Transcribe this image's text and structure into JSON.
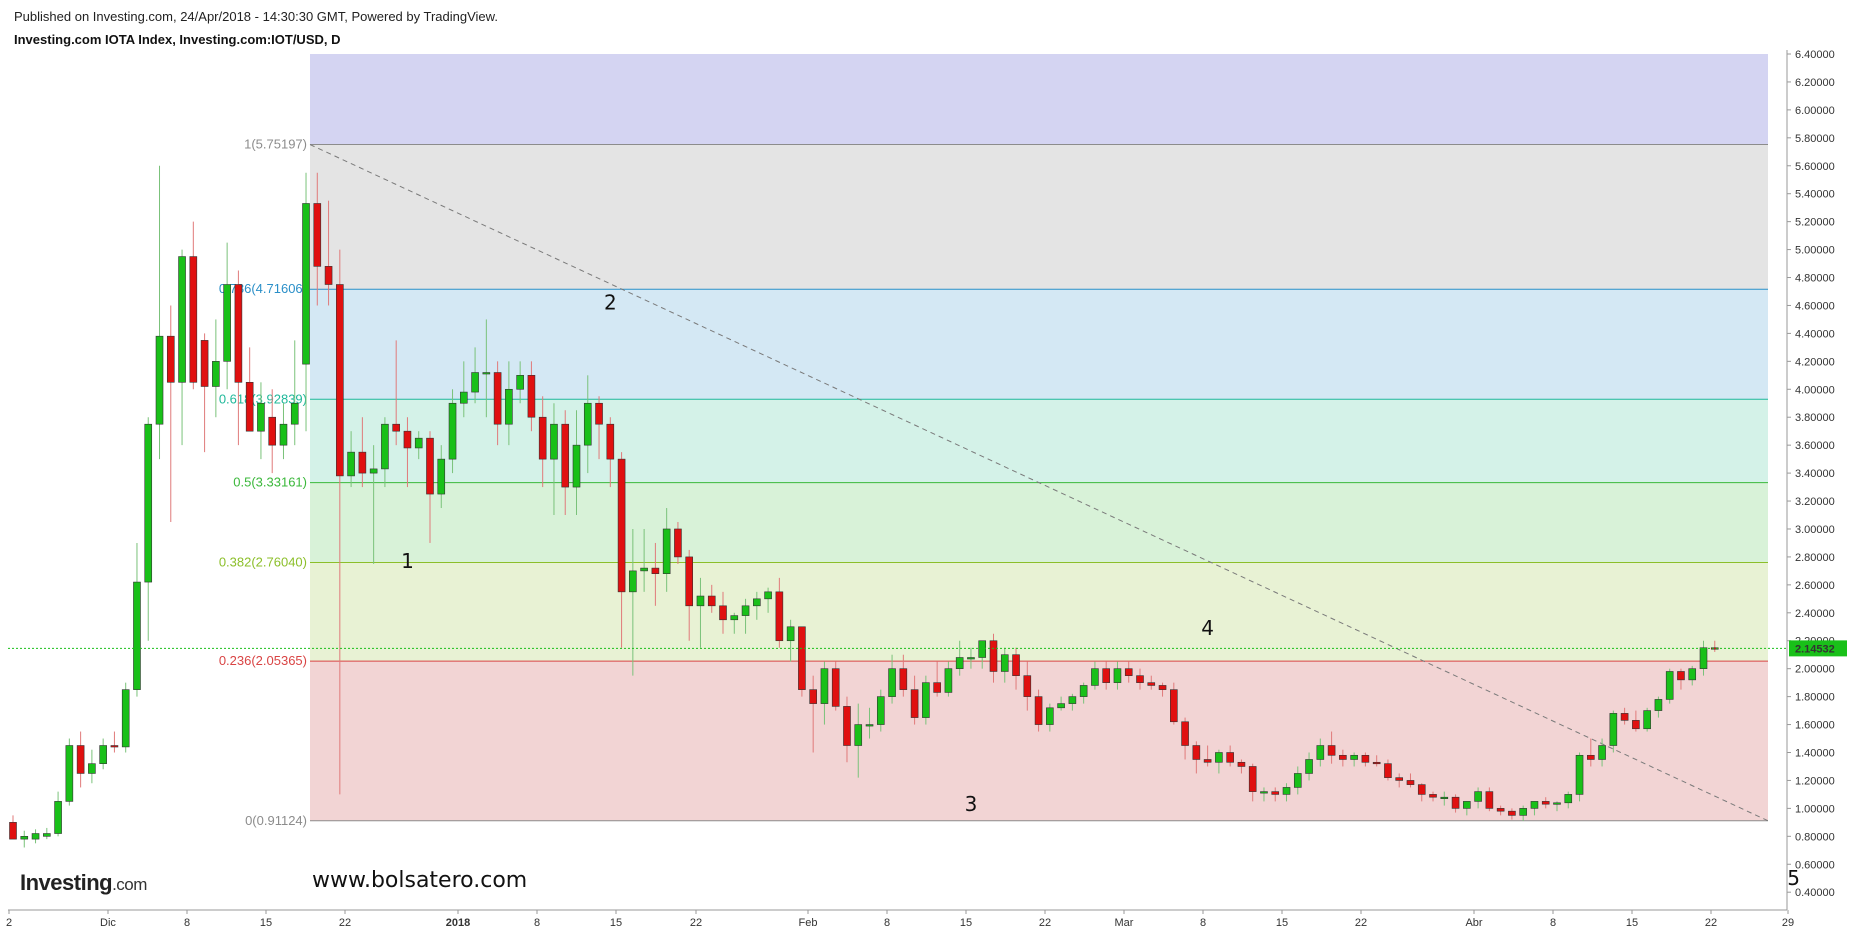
{
  "header": {
    "published": "Published on Investing.com, 24/Apr/2018 - 14:30:30 GMT, Powered by TradingView.",
    "symbol": "Investing.com IOTA Index, Investing.com:IOT/USD, D"
  },
  "branding": {
    "logo_main": "Investing",
    "logo_suffix": ".com",
    "watermark": "www.bolsatero.com"
  },
  "chart_data": {
    "type": "candlestick",
    "symbol": "IOT/USD",
    "timeframe": "D",
    "ylim": [
      0.3,
      6.5
    ],
    "yticks": [
      "6.40000",
      "6.20000",
      "6.00000",
      "5.80000",
      "5.60000",
      "5.40000",
      "5.20000",
      "5.00000",
      "4.80000",
      "4.60000",
      "4.40000",
      "4.20000",
      "4.00000",
      "3.80000",
      "3.60000",
      "3.40000",
      "3.20000",
      "3.00000",
      "2.80000",
      "2.60000",
      "2.40000",
      "2.20000",
      "2.00000",
      "1.80000",
      "1.60000",
      "1.40000",
      "1.20000",
      "1.00000",
      "0.80000",
      "0.60000",
      "0.40000"
    ],
    "xticks": [
      "2",
      "Dic",
      "8",
      "15",
      "22",
      "2018",
      "8",
      "15",
      "22",
      "Feb",
      "8",
      "15",
      "22",
      "Mar",
      "8",
      "15",
      "22",
      "Abr",
      "8",
      "15",
      "22",
      "29"
    ],
    "last_price": "2.14532",
    "colors": {
      "up": "#19c019",
      "down": "#e01010",
      "fib_line_dashed": "#7a7a7a"
    },
    "fibonacci": [
      {
        "label": "1(5.75197)",
        "level": 5.75197,
        "color": "#8c8c8c"
      },
      {
        "label": "0.786(4.71606)",
        "level": 4.71606,
        "color": "#2a8fc8"
      },
      {
        "label": "0.618(3.92839)",
        "level": 3.92839,
        "color": "#1fb89a"
      },
      {
        "label": "0.5(3.33161)",
        "level": 3.33161,
        "color": "#3bb83b"
      },
      {
        "label": "0.382(2.76040)",
        "level": 2.7604,
        "color": "#8cbf2a"
      },
      {
        "label": "0.236(2.05365)",
        "level": 2.05365,
        "color": "#d94444"
      },
      {
        "label": "0(0.91124)",
        "level": 0.91124,
        "color": "#8c8c8c"
      }
    ],
    "fib_zones": [
      {
        "from": 5.75197,
        "to": 6.4,
        "color": "#d4d4f2"
      },
      {
        "from": 4.71606,
        "to": 5.75197,
        "color": "#e4e4e4"
      },
      {
        "from": 3.92839,
        "to": 4.71606,
        "color": "#d4e8f4"
      },
      {
        "from": 3.33161,
        "to": 3.92839,
        "color": "#d4f2e8"
      },
      {
        "from": 2.7604,
        "to": 3.33161,
        "color": "#d8f2d8"
      },
      {
        "from": 2.05365,
        "to": 2.7604,
        "color": "#e8f2d4"
      },
      {
        "from": 0.91124,
        "to": 2.05365,
        "color": "#f2d4d4"
      }
    ],
    "wave_labels": [
      {
        "text": "1",
        "index": 35,
        "price": 2.72
      },
      {
        "text": "2",
        "index": 53,
        "price": 4.57
      },
      {
        "text": "3",
        "index": 85,
        "price": 0.98
      },
      {
        "text": "4",
        "index": 106,
        "price": 2.24
      },
      {
        "text": "5",
        "index": 158,
        "price": 0.45
      }
    ],
    "candles": [
      {
        "o": 0.9,
        "h": 0.95,
        "l": 0.82,
        "c": 0.78
      },
      {
        "o": 0.78,
        "h": 0.84,
        "l": 0.72,
        "c": 0.8
      },
      {
        "o": 0.78,
        "h": 0.85,
        "l": 0.75,
        "c": 0.82
      },
      {
        "o": 0.8,
        "h": 0.86,
        "l": 0.78,
        "c": 0.82
      },
      {
        "o": 0.82,
        "h": 1.12,
        "l": 0.8,
        "c": 1.05
      },
      {
        "o": 1.05,
        "h": 1.5,
        "l": 1.02,
        "c": 1.45
      },
      {
        "o": 1.45,
        "h": 1.55,
        "l": 1.15,
        "c": 1.25
      },
      {
        "o": 1.25,
        "h": 1.42,
        "l": 1.18,
        "c": 1.32
      },
      {
        "o": 1.32,
        "h": 1.5,
        "l": 1.28,
        "c": 1.45
      },
      {
        "o": 1.45,
        "h": 1.55,
        "l": 1.4,
        "c": 1.44
      },
      {
        "o": 1.44,
        "h": 1.9,
        "l": 1.4,
        "c": 1.85
      },
      {
        "o": 1.85,
        "h": 2.9,
        "l": 1.8,
        "c": 2.62
      },
      {
        "o": 2.62,
        "h": 3.8,
        "l": 2.2,
        "c": 3.75
      },
      {
        "o": 3.75,
        "h": 5.6,
        "l": 3.5,
        "c": 4.38
      },
      {
        "o": 4.38,
        "h": 4.6,
        "l": 3.05,
        "c": 4.05
      },
      {
        "o": 4.05,
        "h": 5.0,
        "l": 3.6,
        "c": 4.95
      },
      {
        "o": 4.95,
        "h": 5.2,
        "l": 4.0,
        "c": 4.05
      },
      {
        "o": 4.35,
        "h": 4.4,
        "l": 3.55,
        "c": 4.02
      },
      {
        "o": 4.02,
        "h": 4.5,
        "l": 3.8,
        "c": 4.2
      },
      {
        "o": 4.2,
        "h": 5.05,
        "l": 4.0,
        "c": 4.75
      },
      {
        "o": 4.75,
        "h": 4.85,
        "l": 3.6,
        "c": 4.05
      },
      {
        "o": 4.05,
        "h": 4.3,
        "l": 3.7,
        "c": 3.7
      },
      {
        "o": 3.7,
        "h": 4.05,
        "l": 3.5,
        "c": 3.9
      },
      {
        "o": 3.8,
        "h": 4.0,
        "l": 3.4,
        "c": 3.6
      },
      {
        "o": 3.6,
        "h": 3.9,
        "l": 3.5,
        "c": 3.75
      },
      {
        "o": 3.75,
        "h": 4.35,
        "l": 3.6,
        "c": 3.9
      },
      {
        "o": 4.18,
        "h": 5.55,
        "l": 3.7,
        "c": 5.33
      },
      {
        "o": 5.33,
        "h": 5.55,
        "l": 4.6,
        "c": 4.88
      },
      {
        "o": 4.88,
        "h": 5.35,
        "l": 4.6,
        "c": 4.75
      },
      {
        "o": 4.75,
        "h": 5.0,
        "l": 1.1,
        "c": 3.38
      },
      {
        "o": 3.38,
        "h": 3.7,
        "l": 3.3,
        "c": 3.55
      },
      {
        "o": 3.55,
        "h": 3.8,
        "l": 3.3,
        "c": 3.4
      },
      {
        "o": 3.4,
        "h": 3.6,
        "l": 2.75,
        "c": 3.43
      },
      {
        "o": 3.43,
        "h": 3.8,
        "l": 3.3,
        "c": 3.75
      },
      {
        "o": 3.75,
        "h": 4.35,
        "l": 3.6,
        "c": 3.7
      },
      {
        "o": 3.7,
        "h": 3.8,
        "l": 3.3,
        "c": 3.58
      },
      {
        "o": 3.58,
        "h": 3.7,
        "l": 3.5,
        "c": 3.65
      },
      {
        "o": 3.65,
        "h": 3.7,
        "l": 2.9,
        "c": 3.25
      },
      {
        "o": 3.25,
        "h": 3.6,
        "l": 3.15,
        "c": 3.5
      },
      {
        "o": 3.5,
        "h": 4.0,
        "l": 3.4,
        "c": 3.9
      },
      {
        "o": 3.9,
        "h": 4.2,
        "l": 3.8,
        "c": 3.98
      },
      {
        "o": 3.98,
        "h": 4.3,
        "l": 3.9,
        "c": 4.12
      },
      {
        "o": 4.12,
        "h": 4.5,
        "l": 3.8,
        "c": 4.12
      },
      {
        "o": 4.12,
        "h": 4.2,
        "l": 3.6,
        "c": 3.75
      },
      {
        "o": 3.75,
        "h": 4.2,
        "l": 3.6,
        "c": 4.0
      },
      {
        "o": 4.0,
        "h": 4.2,
        "l": 3.9,
        "c": 4.1
      },
      {
        "o": 4.1,
        "h": 4.2,
        "l": 3.7,
        "c": 3.8
      },
      {
        "o": 3.8,
        "h": 3.95,
        "l": 3.3,
        "c": 3.5
      },
      {
        "o": 3.5,
        "h": 3.9,
        "l": 3.1,
        "c": 3.75
      },
      {
        "o": 3.75,
        "h": 3.85,
        "l": 3.1,
        "c": 3.3
      },
      {
        "o": 3.3,
        "h": 3.85,
        "l": 3.1,
        "c": 3.6
      },
      {
        "o": 3.6,
        "h": 4.1,
        "l": 3.4,
        "c": 3.9
      },
      {
        "o": 3.9,
        "h": 3.95,
        "l": 3.5,
        "c": 3.75
      },
      {
        "o": 3.75,
        "h": 3.8,
        "l": 3.3,
        "c": 3.5
      },
      {
        "o": 3.5,
        "h": 3.55,
        "l": 2.15,
        "c": 2.55
      },
      {
        "o": 2.55,
        "h": 3.0,
        "l": 1.95,
        "c": 2.7
      },
      {
        "o": 2.7,
        "h": 3.0,
        "l": 2.55,
        "c": 2.72
      },
      {
        "o": 2.72,
        "h": 2.9,
        "l": 2.45,
        "c": 2.68
      },
      {
        "o": 2.68,
        "h": 3.15,
        "l": 2.55,
        "c": 3.0
      },
      {
        "o": 3.0,
        "h": 3.05,
        "l": 2.75,
        "c": 2.8
      },
      {
        "o": 2.8,
        "h": 2.85,
        "l": 2.2,
        "c": 2.45
      },
      {
        "o": 2.45,
        "h": 2.65,
        "l": 2.15,
        "c": 2.52
      },
      {
        "o": 2.52,
        "h": 2.6,
        "l": 2.4,
        "c": 2.45
      },
      {
        "o": 2.45,
        "h": 2.55,
        "l": 2.25,
        "c": 2.35
      },
      {
        "o": 2.35,
        "h": 2.4,
        "l": 2.25,
        "c": 2.38
      },
      {
        "o": 2.38,
        "h": 2.5,
        "l": 2.25,
        "c": 2.45
      },
      {
        "o": 2.45,
        "h": 2.55,
        "l": 2.35,
        "c": 2.5
      },
      {
        "o": 2.5,
        "h": 2.58,
        "l": 2.4,
        "c": 2.55
      },
      {
        "o": 2.55,
        "h": 2.65,
        "l": 2.15,
        "c": 2.2
      },
      {
        "o": 2.2,
        "h": 2.35,
        "l": 2.05,
        "c": 2.3
      },
      {
        "o": 2.3,
        "h": 2.3,
        "l": 1.8,
        "c": 1.85
      },
      {
        "o": 1.85,
        "h": 1.95,
        "l": 1.4,
        "c": 1.75
      },
      {
        "o": 1.75,
        "h": 2.05,
        "l": 1.6,
        "c": 2.0
      },
      {
        "o": 2.0,
        "h": 2.05,
        "l": 1.7,
        "c": 1.73
      },
      {
        "o": 1.73,
        "h": 1.8,
        "l": 1.33,
        "c": 1.45
      },
      {
        "o": 1.45,
        "h": 1.75,
        "l": 1.22,
        "c": 1.6
      },
      {
        "o": 1.6,
        "h": 1.72,
        "l": 1.5,
        "c": 1.6
      },
      {
        "o": 1.6,
        "h": 1.85,
        "l": 1.55,
        "c": 1.8
      },
      {
        "o": 1.8,
        "h": 2.1,
        "l": 1.75,
        "c": 2.0
      },
      {
        "o": 2.0,
        "h": 2.1,
        "l": 1.8,
        "c": 1.85
      },
      {
        "o": 1.85,
        "h": 1.95,
        "l": 1.6,
        "c": 1.65
      },
      {
        "o": 1.65,
        "h": 1.95,
        "l": 1.6,
        "c": 1.9
      },
      {
        "o": 1.9,
        "h": 2.05,
        "l": 1.8,
        "c": 1.83
      },
      {
        "o": 1.83,
        "h": 2.05,
        "l": 1.8,
        "c": 2.0
      },
      {
        "o": 2.0,
        "h": 2.2,
        "l": 1.95,
        "c": 2.08
      },
      {
        "o": 2.08,
        "h": 2.15,
        "l": 2.0,
        "c": 2.08
      },
      {
        "o": 2.08,
        "h": 2.2,
        "l": 2.0,
        "c": 2.2
      },
      {
        "o": 2.2,
        "h": 2.25,
        "l": 1.9,
        "c": 1.98
      },
      {
        "o": 1.98,
        "h": 2.15,
        "l": 1.9,
        "c": 2.1
      },
      {
        "o": 2.1,
        "h": 2.15,
        "l": 1.85,
        "c": 1.95
      },
      {
        "o": 1.95,
        "h": 2.05,
        "l": 1.7,
        "c": 1.8
      },
      {
        "o": 1.8,
        "h": 1.85,
        "l": 1.55,
        "c": 1.6
      },
      {
        "o": 1.6,
        "h": 1.75,
        "l": 1.55,
        "c": 1.72
      },
      {
        "o": 1.72,
        "h": 1.8,
        "l": 1.7,
        "c": 1.75
      },
      {
        "o": 1.75,
        "h": 1.82,
        "l": 1.7,
        "c": 1.8
      },
      {
        "o": 1.8,
        "h": 1.9,
        "l": 1.75,
        "c": 1.88
      },
      {
        "o": 1.88,
        "h": 2.05,
        "l": 1.85,
        "c": 2.0
      },
      {
        "o": 2.0,
        "h": 2.05,
        "l": 1.85,
        "c": 1.9
      },
      {
        "o": 1.9,
        "h": 2.05,
        "l": 1.85,
        "c": 2.0
      },
      {
        "o": 2.0,
        "h": 2.05,
        "l": 1.9,
        "c": 1.95
      },
      {
        "o": 1.95,
        "h": 2.0,
        "l": 1.85,
        "c": 1.9
      },
      {
        "o": 1.9,
        "h": 1.95,
        "l": 1.85,
        "c": 1.88
      },
      {
        "o": 1.88,
        "h": 1.9,
        "l": 1.8,
        "c": 1.85
      },
      {
        "o": 1.85,
        "h": 1.9,
        "l": 1.6,
        "c": 1.62
      },
      {
        "o": 1.62,
        "h": 1.65,
        "l": 1.35,
        "c": 1.45
      },
      {
        "o": 1.45,
        "h": 1.48,
        "l": 1.25,
        "c": 1.35
      },
      {
        "o": 1.35,
        "h": 1.45,
        "l": 1.3,
        "c": 1.33
      },
      {
        "o": 1.33,
        "h": 1.42,
        "l": 1.25,
        "c": 1.4
      },
      {
        "o": 1.4,
        "h": 1.45,
        "l": 1.3,
        "c": 1.33
      },
      {
        "o": 1.33,
        "h": 1.35,
        "l": 1.25,
        "c": 1.3
      },
      {
        "o": 1.3,
        "h": 1.32,
        "l": 1.05,
        "c": 1.12
      },
      {
        "o": 1.12,
        "h": 1.15,
        "l": 1.05,
        "c": 1.12
      },
      {
        "o": 1.12,
        "h": 1.15,
        "l": 1.05,
        "c": 1.1
      },
      {
        "o": 1.1,
        "h": 1.18,
        "l": 1.05,
        "c": 1.15
      },
      {
        "o": 1.15,
        "h": 1.3,
        "l": 1.1,
        "c": 1.25
      },
      {
        "o": 1.25,
        "h": 1.4,
        "l": 1.2,
        "c": 1.35
      },
      {
        "o": 1.35,
        "h": 1.5,
        "l": 1.3,
        "c": 1.45
      },
      {
        "o": 1.45,
        "h": 1.55,
        "l": 1.32,
        "c": 1.38
      },
      {
        "o": 1.38,
        "h": 1.42,
        "l": 1.3,
        "c": 1.35
      },
      {
        "o": 1.35,
        "h": 1.4,
        "l": 1.3,
        "c": 1.38
      },
      {
        "o": 1.38,
        "h": 1.4,
        "l": 1.3,
        "c": 1.33
      },
      {
        "o": 1.33,
        "h": 1.38,
        "l": 1.3,
        "c": 1.32
      },
      {
        "o": 1.32,
        "h": 1.35,
        "l": 1.2,
        "c": 1.22
      },
      {
        "o": 1.22,
        "h": 1.25,
        "l": 1.15,
        "c": 1.2
      },
      {
        "o": 1.2,
        "h": 1.25,
        "l": 1.15,
        "c": 1.17
      },
      {
        "o": 1.17,
        "h": 1.18,
        "l": 1.05,
        "c": 1.1
      },
      {
        "o": 1.1,
        "h": 1.12,
        "l": 1.05,
        "c": 1.08
      },
      {
        "o": 1.08,
        "h": 1.12,
        "l": 1.02,
        "c": 1.08
      },
      {
        "o": 1.08,
        "h": 1.1,
        "l": 0.97,
        "c": 1.0
      },
      {
        "o": 1.0,
        "h": 1.05,
        "l": 0.95,
        "c": 1.05
      },
      {
        "o": 1.05,
        "h": 1.15,
        "l": 1.0,
        "c": 1.12
      },
      {
        "o": 1.12,
        "h": 1.15,
        "l": 0.98,
        "c": 1.0
      },
      {
        "o": 1.0,
        "h": 1.02,
        "l": 0.95,
        "c": 0.98
      },
      {
        "o": 0.98,
        "h": 1.0,
        "l": 0.92,
        "c": 0.95
      },
      {
        "o": 0.95,
        "h": 1.02,
        "l": 0.91,
        "c": 1.0
      },
      {
        "o": 1.0,
        "h": 1.05,
        "l": 0.95,
        "c": 1.05
      },
      {
        "o": 1.05,
        "h": 1.08,
        "l": 1.0,
        "c": 1.03
      },
      {
        "o": 1.03,
        "h": 1.05,
        "l": 0.98,
        "c": 1.04
      },
      {
        "o": 1.04,
        "h": 1.12,
        "l": 1.0,
        "c": 1.1
      },
      {
        "o": 1.1,
        "h": 1.4,
        "l": 1.05,
        "c": 1.38
      },
      {
        "o": 1.38,
        "h": 1.5,
        "l": 1.3,
        "c": 1.35
      },
      {
        "o": 1.35,
        "h": 1.5,
        "l": 1.3,
        "c": 1.45
      },
      {
        "o": 1.45,
        "h": 1.7,
        "l": 1.4,
        "c": 1.68
      },
      {
        "o": 1.68,
        "h": 1.72,
        "l": 1.6,
        "c": 1.63
      },
      {
        "o": 1.63,
        "h": 1.7,
        "l": 1.55,
        "c": 1.57
      },
      {
        "o": 1.57,
        "h": 1.72,
        "l": 1.55,
        "c": 1.7
      },
      {
        "o": 1.7,
        "h": 1.8,
        "l": 1.65,
        "c": 1.78
      },
      {
        "o": 1.78,
        "h": 2.0,
        "l": 1.75,
        "c": 1.98
      },
      {
        "o": 1.98,
        "h": 2.0,
        "l": 1.85,
        "c": 1.92
      },
      {
        "o": 1.92,
        "h": 2.02,
        "l": 1.88,
        "c": 2.0
      },
      {
        "o": 2.0,
        "h": 2.2,
        "l": 1.95,
        "c": 2.15
      },
      {
        "o": 2.15,
        "h": 2.2,
        "l": 2.12,
        "c": 2.14532
      }
    ]
  }
}
